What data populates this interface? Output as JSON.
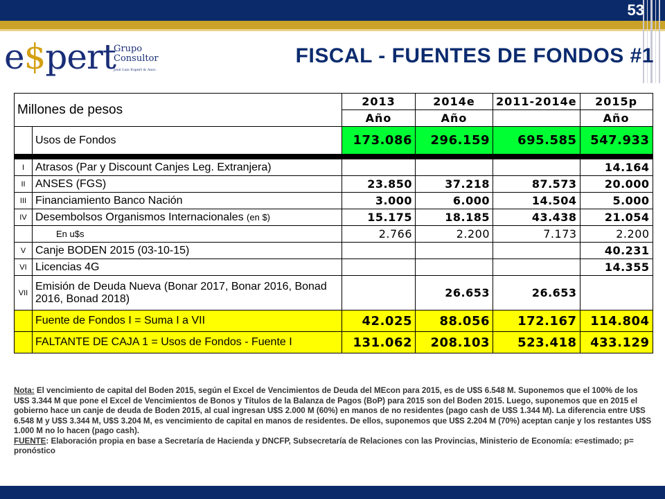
{
  "slide": {
    "number": "53",
    "title": "FISCAL - FUENTES DE FONDOS #1"
  },
  "logo": {
    "main_e": "e",
    "main_dollar": "$",
    "main_rest": "pert",
    "grupo": "Grupo",
    "consultor": "Consultor",
    "tagline": "José Luis Espert & Asoc."
  },
  "table": {
    "unit_label": "Millones de pesos",
    "years": [
      "2013",
      "2014e",
      "2011-2014e",
      "2015p"
    ],
    "period": [
      "Año",
      "Año",
      "",
      "Año"
    ],
    "usos": {
      "label": "Usos de Fondos",
      "values": [
        "173.086",
        "296.159",
        "695.585",
        "547.933"
      ]
    },
    "rows": [
      {
        "roman": "I",
        "label": "Atrasos (Par y Discount Canjes Leg. Extranjera)",
        "values": [
          "",
          "",
          "",
          "14.164"
        ]
      },
      {
        "roman": "II",
        "label": "ANSES (FGS)",
        "values": [
          "23.850",
          "37.218",
          "87.573",
          "20.000"
        ]
      },
      {
        "roman": "III",
        "label": "Financiamiento Banco Nación",
        "values": [
          "3.000",
          "6.000",
          "14.504",
          "5.000"
        ]
      },
      {
        "roman": "IV",
        "label": "Desembolsos Organismos Internacionales",
        "label_suffix": "(en $)",
        "values": [
          "15.175",
          "18.185",
          "43.438",
          "21.054"
        ]
      },
      {
        "roman": "",
        "label": "En u$s",
        "values": [
          "2.766",
          "2.200",
          "7.173",
          "2.200"
        ]
      },
      {
        "roman": "V",
        "label": "Canje BODEN 2015 (03-10-15)",
        "values": [
          "",
          "",
          "",
          "40.231"
        ]
      },
      {
        "roman": "VI",
        "label": "Licencias 4G",
        "values": [
          "",
          "",
          "",
          "14.355"
        ]
      },
      {
        "roman": "VII",
        "label": "Emisión de Deuda Nueva (Bonar 2017, Bonar 2016, Bonad 2016, Bonad 2018)",
        "values": [
          "",
          "26.653",
          "26.653",
          ""
        ]
      }
    ],
    "fuente": {
      "label": "Fuente de Fondos I = Suma I a VII",
      "values": [
        "42.025",
        "88.056",
        "172.167",
        "114.804"
      ]
    },
    "faltante": {
      "label": "FALTANTE DE CAJA 1  = Usos de Fondos - Fuente I",
      "values": [
        "131.062",
        "208.103",
        "523.418",
        "433.129"
      ]
    }
  },
  "notes": {
    "nota_label": "Nota:",
    "nota_text": " El vencimiento de capital del Boden 2015, según el Excel de Vencimientos de Deuda del MEcon para 2015, es de U$S 6.548 M. Suponemos que el 100% de los U$S 3.344 M que pone el Excel de Vencimientos de Bonos y Títulos de la Balanza de Pagos (BoP) para 2015 son del Boden 2015. Luego, suponemos que en 2015 el gobierno hace un canje de deuda de Boden 2015, al cual ingresan U$S 2.000 M (60%) en manos de no residentes (pago cash de U$S 1.344 M). La diferencia entre U$S 6.548 M y U$S 3.344 M, U$S 3.204 M, es vencimiento de capital en manos de residentes. De ellos, suponemos que U$S 2.204 M (70%) aceptan canje y los restantes U$S 1.000 M no lo hacen (pago cash).",
    "fuente_label": "FUENTE",
    "fuente_text": ": Elaboración propia en base a Secretaría de Hacienda y DNCFP, Subsecretaría de Relaciones con las Provincias, Ministerio de Economía: e=estimado; p= pronóstico"
  },
  "colors": {
    "navy": "#0a2a6a",
    "gold": "#c9a227",
    "title_blue": "#0b2b6e",
    "highlight_green": "#00ff33",
    "highlight_yellow": "#ffff00"
  }
}
